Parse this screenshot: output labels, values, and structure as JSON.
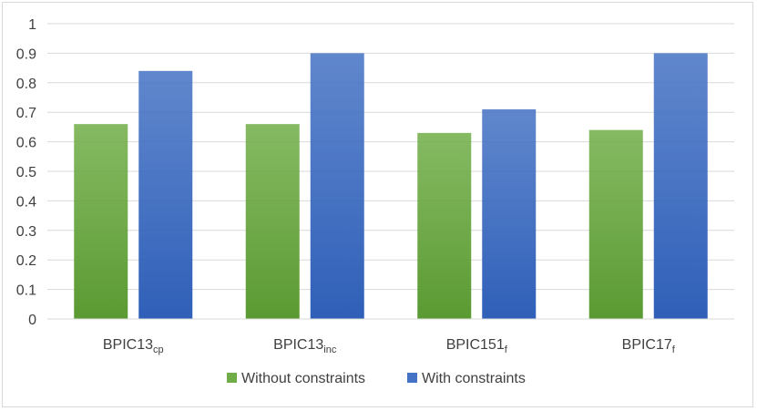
{
  "chart_data": {
    "type": "bar",
    "categories": [
      {
        "base": "BPIC13",
        "sub": "cp"
      },
      {
        "base": "BPIC13",
        "sub": "inc"
      },
      {
        "base": "BPIC151",
        "sub": "f"
      },
      {
        "base": "BPIC17",
        "sub": "f"
      }
    ],
    "series": [
      {
        "name": "Without constraints",
        "values": [
          0.66,
          0.66,
          0.63,
          0.64
        ],
        "color": "#70ad47",
        "color_dark": "#5a9a32"
      },
      {
        "name": "With constraints",
        "values": [
          0.84,
          0.9,
          0.71,
          0.9
        ],
        "color": "#4472c4",
        "color_dark": "#2f5fb8"
      }
    ],
    "ylim": [
      0,
      1
    ],
    "yticks": [
      "0",
      "0.1",
      "0.2",
      "0.3",
      "0.4",
      "0.5",
      "0.6",
      "0.7",
      "0.8",
      "0.9",
      "1"
    ],
    "grid": true,
    "legend_position": "bottom",
    "title": "",
    "xlabel": "",
    "ylabel": ""
  }
}
